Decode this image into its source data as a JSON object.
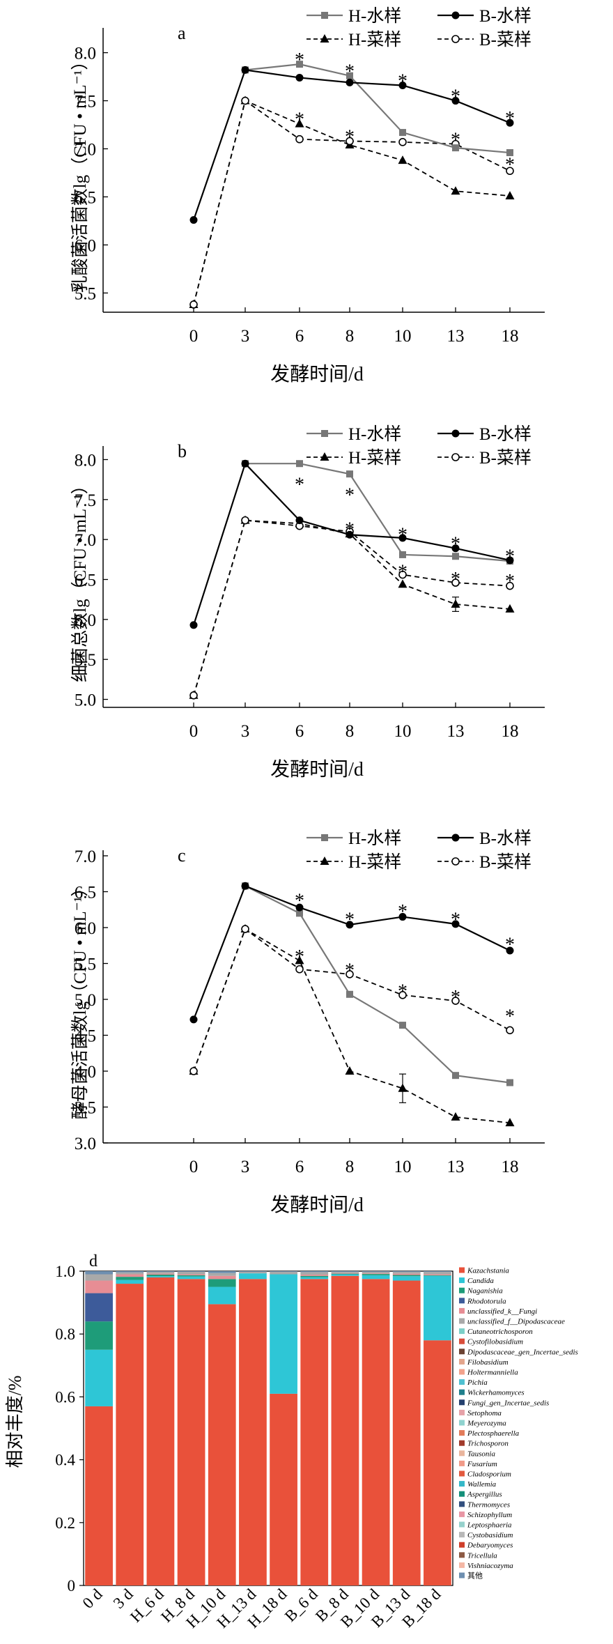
{
  "chart_data": [
    {
      "panel": "a",
      "type": "line",
      "xlabel": "发酵时间/d",
      "ylabel": "乳酸菌活菌数lg（CFU • mL⁻¹）",
      "categories": [
        "0",
        "3",
        "6",
        "8",
        "10",
        "13",
        "18"
      ],
      "ylim": [
        5.3,
        8.2
      ],
      "yticks": [
        "5.5",
        "6.0",
        "6.5",
        "7.0",
        "7.5",
        "8.0"
      ],
      "series": [
        {
          "name": "H-水样",
          "style": "gray-square",
          "values": [
            null,
            7.82,
            7.88,
            7.76,
            7.17,
            7.01,
            6.96
          ]
        },
        {
          "name": "B-水样",
          "style": "black-circle",
          "values": [
            6.26,
            7.82,
            7.74,
            7.69,
            7.66,
            7.5,
            7.27
          ]
        },
        {
          "name": "H-菜样",
          "style": "dashed-triangle",
          "values": [
            5.38,
            7.5,
            7.26,
            7.04,
            6.88,
            6.56,
            6.51
          ]
        },
        {
          "name": "B-菜样",
          "style": "dashed-open-circle",
          "values": [
            5.38,
            7.5,
            7.1,
            7.08,
            7.07,
            7.05,
            6.77
          ]
        }
      ],
      "asterisks": [
        {
          "x": "6",
          "y": 7.96
        },
        {
          "x": "6",
          "y": 7.34
        },
        {
          "x": "8",
          "y": 7.84
        },
        {
          "x": "8",
          "y": 7.16
        },
        {
          "x": "10",
          "y": 7.74
        },
        {
          "x": "13",
          "y": 7.58
        },
        {
          "x": "13",
          "y": 7.13
        },
        {
          "x": "18",
          "y": 7.35
        },
        {
          "x": "18",
          "y": 6.87
        }
      ],
      "asterisk_text": "*"
    },
    {
      "panel": "b",
      "type": "line",
      "xlabel": "发酵时间/d",
      "ylabel": "细菌总数lg（CFU • mL⁻¹）",
      "categories": [
        "0",
        "3",
        "6",
        "8",
        "10",
        "13",
        "18"
      ],
      "ylim": [
        4.9,
        8.1
      ],
      "yticks": [
        "5.0",
        "5.5",
        "6.0",
        "6.5",
        "7.0",
        "7.5",
        "8.0"
      ],
      "series": [
        {
          "name": "H-水样",
          "style": "gray-square",
          "values": [
            null,
            7.95,
            7.95,
            7.82,
            6.81,
            6.79,
            6.73
          ]
        },
        {
          "name": "B-水样",
          "style": "black-circle",
          "values": [
            5.93,
            7.95,
            7.24,
            7.06,
            7.02,
            6.89,
            6.74
          ]
        },
        {
          "name": "H-菜样",
          "style": "dashed-triangle",
          "values": [
            5.05,
            7.24,
            7.2,
            7.07,
            6.44,
            6.19,
            6.13
          ]
        },
        {
          "name": "B-菜样",
          "style": "dashed-open-circle",
          "values": [
            5.05,
            7.24,
            7.17,
            7.1,
            6.56,
            6.46,
            6.42
          ]
        }
      ],
      "asterisks": [
        {
          "x": "6",
          "y": 7.73
        },
        {
          "x": "8",
          "y": 7.6
        },
        {
          "x": "8",
          "y": 7.17
        },
        {
          "x": "10",
          "y": 7.1
        },
        {
          "x": "10",
          "y": 6.64
        },
        {
          "x": "13",
          "y": 6.99
        },
        {
          "x": "13",
          "y": 6.55
        },
        {
          "x": "18",
          "y": 6.83
        },
        {
          "x": "18",
          "y": 6.52
        }
      ],
      "asterisk_text": "*"
    },
    {
      "panel": "c",
      "type": "line",
      "xlabel": "发酵时间/d",
      "ylabel": "酵母菌活菌数lg（CFU • mL⁻¹）",
      "categories": [
        "0",
        "3",
        "6",
        "8",
        "10",
        "13",
        "18"
      ],
      "ylim": [
        3.0,
        7.0
      ],
      "yticks": [
        "3.0",
        "3.5",
        "4.0",
        "4.5",
        "5.0",
        "5.5",
        "6.0",
        "6.5",
        "7.0"
      ],
      "series": [
        {
          "name": "H-水样",
          "style": "gray-square",
          "values": [
            null,
            6.58,
            6.2,
            5.07,
            4.64,
            3.94,
            3.84
          ]
        },
        {
          "name": "B-水样",
          "style": "black-circle",
          "values": [
            4.72,
            6.58,
            6.28,
            6.04,
            6.15,
            6.05,
            5.68
          ]
        },
        {
          "name": "H-菜样",
          "style": "dashed-triangle",
          "values": [
            4.0,
            5.98,
            5.54,
            4.0,
            3.76,
            3.36,
            3.28
          ]
        },
        {
          "name": "B-菜样",
          "style": "dashed-open-circle",
          "values": [
            4.0,
            5.98,
            5.42,
            5.35,
            5.06,
            4.98,
            4.57
          ]
        }
      ],
      "asterisks": [
        {
          "x": "6",
          "y": 6.42
        },
        {
          "x": "6",
          "y": 5.64
        },
        {
          "x": "8",
          "y": 6.16
        },
        {
          "x": "8",
          "y": 5.45
        },
        {
          "x": "10",
          "y": 6.27
        },
        {
          "x": "10",
          "y": 5.16
        },
        {
          "x": "13",
          "y": 6.16
        },
        {
          "x": "13",
          "y": 5.08
        },
        {
          "x": "18",
          "y": 5.81
        },
        {
          "x": "18",
          "y": 4.81
        }
      ],
      "asterisk_text": "*"
    },
    {
      "panel": "d",
      "type": "bar",
      "stacked": true,
      "ylabel": "相对丰度/%",
      "ylim": [
        0,
        1.0
      ],
      "yticks": [
        "0",
        "0.2",
        "0.4",
        "0.6",
        "0.8",
        "1.0"
      ],
      "categories": [
        "0 d",
        "3 d",
        "H_6 d",
        "H_8 d",
        "H_10 d",
        "H_13 d",
        "H_18 d",
        "B_6 d",
        "B_8 d",
        "B_10 d",
        "B_13 d",
        "B_18 d"
      ],
      "series": [
        {
          "name": "Kazachstania",
          "color": "#e9513a",
          "values": [
            0.57,
            0.96,
            0.98,
            0.975,
            0.895,
            0.975,
            0.61,
            0.975,
            0.985,
            0.975,
            0.97,
            0.78
          ]
        },
        {
          "name": "Candida",
          "color": "#2ec6d6",
          "values": [
            0.18,
            0.012,
            0.004,
            0.008,
            0.055,
            0.018,
            0.38,
            0.006,
            0.005,
            0.012,
            0.014,
            0.205
          ]
        },
        {
          "name": "Naganishia",
          "color": "#1e9c79",
          "values": [
            0.09,
            0.01,
            0.005,
            0.004,
            0.025,
            0.0,
            0.0,
            0.004,
            0.002,
            0.004,
            0.004,
            0.002
          ]
        },
        {
          "name": "Rhodotorula",
          "color": "#3d5b9a",
          "values": [
            0.09,
            0.0,
            0.0,
            0.0,
            0.0,
            0.0,
            0.0,
            0.0,
            0.0,
            0.0,
            0.0,
            0.0
          ]
        },
        {
          "name": "unclassified_k__Fungi",
          "color": "#e78d94",
          "values": [
            0.04,
            0.008,
            0.003,
            0.003,
            0.01,
            0.0,
            0.0,
            0.004,
            0.002,
            0.002,
            0.004,
            0.003
          ]
        },
        {
          "name": "unclassified_f__Dipodascaceae",
          "color": "#a9a9a9",
          "values": [
            0.02,
            0.006,
            0.006,
            0.008,
            0.009,
            0.005,
            0.008,
            0.008,
            0.004,
            0.005,
            0.006,
            0.008
          ]
        },
        {
          "name": "Cutaneotrichosporon",
          "color": "#7cd0c8",
          "values": [
            0,
            0,
            0,
            0,
            0,
            0,
            0,
            0,
            0,
            0,
            0,
            0
          ]
        },
        {
          "name": "Cystofilobasidium",
          "color": "#d94d3a",
          "values": [
            0,
            0,
            0,
            0,
            0,
            0,
            0,
            0,
            0,
            0,
            0,
            0
          ]
        },
        {
          "name": "Dipodascaceae_gen_Incertae_sedis",
          "color": "#6b4232",
          "values": [
            0,
            0,
            0,
            0,
            0,
            0,
            0,
            0,
            0,
            0,
            0,
            0
          ]
        },
        {
          "name": "Filobasidium",
          "color": "#e3a58c",
          "values": [
            0,
            0,
            0,
            0,
            0,
            0,
            0,
            0,
            0,
            0,
            0,
            0
          ]
        },
        {
          "name": "Holtermanniella",
          "color": "#f2a28c",
          "values": [
            0,
            0,
            0,
            0,
            0,
            0,
            0,
            0,
            0,
            0,
            0,
            0
          ]
        },
        {
          "name": "Pichia",
          "color": "#4fc1d1",
          "values": [
            0,
            0,
            0,
            0,
            0,
            0,
            0,
            0,
            0,
            0,
            0,
            0
          ]
        },
        {
          "name": "Wickerhamomyces",
          "color": "#1f7f8c",
          "values": [
            0,
            0,
            0,
            0,
            0,
            0,
            0,
            0,
            0,
            0,
            0,
            0
          ]
        },
        {
          "name": "Fungi_gen_Incertae_sedis",
          "color": "#25406e",
          "values": [
            0,
            0,
            0,
            0,
            0,
            0,
            0,
            0,
            0,
            0,
            0,
            0
          ]
        },
        {
          "name": "Setophoma",
          "color": "#e6a2a8",
          "values": [
            0,
            0,
            0,
            0,
            0,
            0,
            0,
            0,
            0,
            0,
            0,
            0
          ]
        },
        {
          "name": "Meyerozyma",
          "color": "#8fd3cf",
          "values": [
            0,
            0,
            0,
            0,
            0,
            0,
            0,
            0,
            0,
            0,
            0,
            0
          ]
        },
        {
          "name": "Plectosphaerella",
          "color": "#e27c5b",
          "values": [
            0,
            0,
            0,
            0,
            0,
            0,
            0,
            0,
            0,
            0,
            0,
            0
          ]
        },
        {
          "name": "Trichosporon",
          "color": "#a13b2c",
          "values": [
            0,
            0,
            0,
            0,
            0,
            0,
            0,
            0,
            0,
            0,
            0,
            0
          ]
        },
        {
          "name": "Tausonia",
          "color": "#e9b59d",
          "values": [
            0,
            0,
            0,
            0,
            0,
            0,
            0,
            0,
            0,
            0,
            0,
            0
          ]
        },
        {
          "name": "Fusarium",
          "color": "#f19b89",
          "values": [
            0,
            0,
            0,
            0,
            0,
            0,
            0,
            0,
            0,
            0,
            0,
            0
          ]
        },
        {
          "name": "Cladosporium",
          "color": "#e25a3f",
          "values": [
            0,
            0,
            0,
            0,
            0,
            0,
            0,
            0,
            0,
            0,
            0,
            0
          ]
        },
        {
          "name": "Wallemia",
          "color": "#35b8c8",
          "values": [
            0,
            0,
            0,
            0,
            0,
            0,
            0,
            0,
            0,
            0,
            0,
            0
          ]
        },
        {
          "name": "Aspergillus",
          "color": "#15907a",
          "values": [
            0,
            0,
            0,
            0,
            0,
            0,
            0,
            0,
            0,
            0,
            0,
            0
          ]
        },
        {
          "name": "Thermomyces",
          "color": "#33507f",
          "values": [
            0,
            0,
            0,
            0,
            0,
            0,
            0,
            0,
            0,
            0,
            0,
            0
          ]
        },
        {
          "name": "Schizophyllum",
          "color": "#e896a4",
          "values": [
            0,
            0,
            0,
            0,
            0,
            0,
            0,
            0,
            0,
            0,
            0,
            0
          ]
        },
        {
          "name": "Leptosphaeria",
          "color": "#96d1cc",
          "values": [
            0,
            0,
            0,
            0,
            0,
            0,
            0,
            0,
            0,
            0,
            0,
            0
          ]
        },
        {
          "name": "Cystobasidium",
          "color": "#b8b8b8",
          "values": [
            0,
            0,
            0,
            0,
            0,
            0,
            0,
            0,
            0,
            0,
            0,
            0
          ]
        },
        {
          "name": "Debaryomyces",
          "color": "#cf3f2b",
          "values": [
            0,
            0,
            0,
            0,
            0,
            0,
            0,
            0,
            0,
            0,
            0,
            0
          ]
        },
        {
          "name": "Tricellula",
          "color": "#8c5a44",
          "values": [
            0,
            0,
            0,
            0,
            0,
            0,
            0,
            0,
            0,
            0,
            0,
            0
          ]
        },
        {
          "name": "Vishniacozyma",
          "color": "#f4b7a5",
          "values": [
            0,
            0,
            0,
            0,
            0,
            0,
            0,
            0,
            0,
            0,
            0,
            0
          ]
        },
        {
          "name": "其他",
          "color": "#6e8fb0",
          "values": [
            0,
            0,
            0,
            0,
            0,
            0,
            0,
            0,
            0,
            0,
            0,
            0
          ]
        }
      ]
    }
  ]
}
